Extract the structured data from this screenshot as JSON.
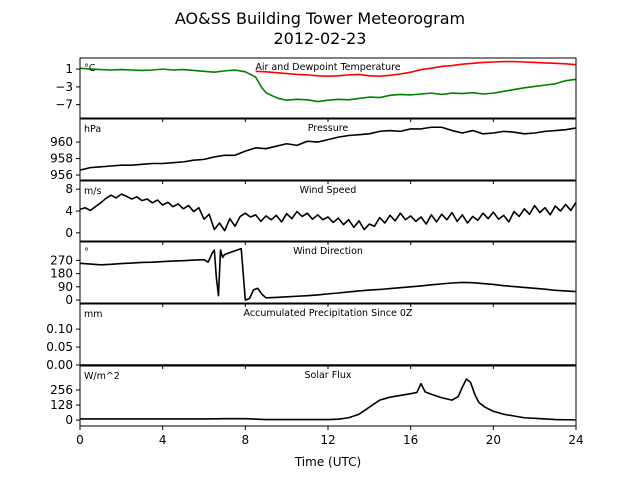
{
  "figure": {
    "title_line1": "AO&SS Building Tower Meteorogram",
    "title_line2": "2012-02-23",
    "xlabel": "Time (UTC)"
  },
  "chart_data": {
    "type": "line",
    "xlim": [
      0,
      24
    ],
    "xticks": [
      0,
      4,
      8,
      12,
      16,
      20,
      24
    ],
    "panels": [
      {
        "key": "temp",
        "title": "Air and Dewpoint Temperature",
        "unit": "°C",
        "ylim": [
          -10,
          3.5
        ],
        "yticks": [
          1,
          -3,
          -7
        ],
        "series": [
          {
            "name": "Air temperature",
            "color": "#ff0000",
            "x": [
              8.5,
              9,
              9.5,
              10,
              10.5,
              11,
              11.5,
              12,
              12.5,
              13,
              13.5,
              14,
              14.5,
              15,
              15.5,
              16,
              16.5,
              17,
              17.5,
              18,
              18.5,
              19,
              19.5,
              20,
              20.5,
              21,
              21.5,
              22,
              22.5,
              23,
              23.5,
              24
            ],
            "y": [
              0.5,
              0.4,
              0.2,
              0.0,
              -0.2,
              -0.3,
              -0.5,
              -0.6,
              -0.5,
              -0.3,
              -0.2,
              -0.5,
              -0.6,
              -0.4,
              -0.1,
              0.3,
              0.9,
              1.2,
              1.6,
              1.8,
              2.1,
              2.3,
              2.5,
              2.6,
              2.7,
              2.7,
              2.6,
              2.5,
              2.4,
              2.3,
              2.2,
              2.0
            ]
          },
          {
            "name": "Dewpoint",
            "color": "#008000",
            "x": [
              0,
              0.5,
              1,
              1.5,
              2,
              2.5,
              3,
              3.5,
              4,
              4.5,
              5,
              5.5,
              6,
              6.5,
              7,
              7.5,
              8,
              8.5,
              8.8,
              9,
              9.3,
              9.6,
              10,
              10.5,
              11,
              11.5,
              12,
              12.5,
              13,
              13.5,
              14,
              14.5,
              15,
              15.5,
              16,
              16.5,
              17,
              17.5,
              18,
              18.5,
              19,
              19.5,
              20,
              20.5,
              21,
              21.5,
              22,
              22.5,
              23,
              23.5,
              24
            ],
            "y": [
              1.2,
              1.0,
              0.9,
              0.8,
              0.9,
              0.8,
              0.7,
              0.8,
              1.0,
              0.8,
              0.9,
              0.7,
              0.5,
              0.3,
              0.6,
              0.8,
              0.4,
              -0.8,
              -3.2,
              -4.3,
              -5.0,
              -5.6,
              -6.0,
              -5.8,
              -5.9,
              -6.3,
              -6.0,
              -5.8,
              -5.9,
              -5.6,
              -5.3,
              -5.4,
              -4.9,
              -4.7,
              -4.8,
              -4.6,
              -4.4,
              -4.7,
              -4.4,
              -4.5,
              -4.3,
              -4.6,
              -4.4,
              -4.0,
              -3.6,
              -3.2,
              -2.9,
              -2.6,
              -2.3,
              -1.6,
              -1.3
            ]
          }
        ]
      },
      {
        "key": "pres",
        "title": "Pressure",
        "unit": "hPa",
        "ylim": [
          955.4,
          962.8
        ],
        "yticks": [
          960,
          958,
          956
        ],
        "series": [
          {
            "name": "Pressure",
            "color": "#000000",
            "x": [
              0,
              0.5,
              1,
              1.5,
              2,
              2.5,
              3,
              3.5,
              4,
              4.5,
              5,
              5.5,
              6,
              6.5,
              7,
              7.5,
              8,
              8.5,
              9,
              9.5,
              10,
              10.5,
              11,
              11.5,
              12,
              12.5,
              13,
              13.5,
              14,
              14.5,
              15,
              15.5,
              16,
              16.5,
              17,
              17.5,
              18,
              18.5,
              19,
              19.5,
              20,
              20.5,
              21,
              21.5,
              22,
              22.5,
              23,
              23.5,
              24
            ],
            "y": [
              956.6,
              956.9,
              957.0,
              957.1,
              957.2,
              957.2,
              957.3,
              957.4,
              957.4,
              957.5,
              957.6,
              957.8,
              957.9,
              958.2,
              958.4,
              958.4,
              958.9,
              959.3,
              959.2,
              959.5,
              959.8,
              959.6,
              960.1,
              960.0,
              960.3,
              960.6,
              960.8,
              960.9,
              961.0,
              961.3,
              961.4,
              961.3,
              961.6,
              961.6,
              961.8,
              961.8,
              961.4,
              961.1,
              961.4,
              961.0,
              961.1,
              961.3,
              961.2,
              961.0,
              961.1,
              961.3,
              961.4,
              961.5,
              961.7
            ]
          }
        ]
      },
      {
        "key": "wspd",
        "title": "Wind Speed",
        "unit": "m/s",
        "ylim": [
          -1.5,
          9.5
        ],
        "yticks": [
          8,
          4,
          0
        ],
        "series": [
          {
            "name": "Wind speed",
            "color": "#000000",
            "x": [
              0,
              0.25,
              0.5,
              0.75,
              1,
              1.25,
              1.5,
              1.75,
              2,
              2.25,
              2.5,
              2.75,
              3,
              3.25,
              3.5,
              3.75,
              4,
              4.25,
              4.5,
              4.75,
              5,
              5.25,
              5.5,
              5.75,
              6,
              6.25,
              6.5,
              6.75,
              7,
              7.25,
              7.5,
              7.75,
              8,
              8.25,
              8.5,
              8.75,
              9,
              9.25,
              9.5,
              9.75,
              10,
              10.25,
              10.5,
              10.75,
              11,
              11.25,
              11.5,
              11.75,
              12,
              12.25,
              12.5,
              12.75,
              13,
              13.25,
              13.5,
              13.75,
              14,
              14.25,
              14.5,
              14.75,
              15,
              15.25,
              15.5,
              15.75,
              16,
              16.25,
              16.5,
              16.75,
              17,
              17.25,
              17.5,
              17.75,
              18,
              18.25,
              18.5,
              18.75,
              19,
              19.25,
              19.5,
              19.75,
              20,
              20.25,
              20.5,
              20.75,
              21,
              21.25,
              21.5,
              21.75,
              22,
              22.25,
              22.5,
              22.75,
              23,
              23.25,
              23.5,
              23.75,
              24
            ],
            "y": [
              4.3,
              4.6,
              4.1,
              4.8,
              5.5,
              6.3,
              6.9,
              6.4,
              7.1,
              6.7,
              6.2,
              6.6,
              5.9,
              6.2,
              5.5,
              6.0,
              5.1,
              5.6,
              4.8,
              5.3,
              4.4,
              5.0,
              3.9,
              4.6,
              2.5,
              3.4,
              0.6,
              1.8,
              0.4,
              2.6,
              1.2,
              3.0,
              3.6,
              2.9,
              3.3,
              2.1,
              3.1,
              2.4,
              3.2,
              2.0,
              3.5,
              2.6,
              3.9,
              3.0,
              3.6,
              2.5,
              3.3,
              2.4,
              2.9,
              1.9,
              2.7,
              1.5,
              2.4,
              1.0,
              2.2,
              0.6,
              1.6,
              1.2,
              2.8,
              1.8,
              3.2,
              2.2,
              3.6,
              2.4,
              3.1,
              2.1,
              2.9,
              1.6,
              3.3,
              2.0,
              3.4,
              2.4,
              3.7,
              2.1,
              3.3,
              1.8,
              3.0,
              2.3,
              3.6,
              2.6,
              3.8,
              2.5,
              3.2,
              2.0,
              3.9,
              3.0,
              4.4,
              3.4,
              5.0,
              3.7,
              4.6,
              3.3,
              4.9,
              4.0,
              5.2,
              4.1,
              5.6
            ]
          }
        ]
      },
      {
        "key": "wdir",
        "title": "Wind Direction",
        "unit": "°",
        "ylim": [
          -20,
          395
        ],
        "yticks": [
          270,
          180,
          90,
          0
        ],
        "series": [
          {
            "name": "Wind direction",
            "color": "#000000",
            "x": [
              0,
              0.5,
              1,
              1.5,
              2,
              2.5,
              3,
              3.5,
              4,
              4.5,
              5,
              5.5,
              6,
              6.2,
              6.4,
              6.5,
              6.6,
              6.7,
              6.8,
              6.9,
              7.0,
              7.2,
              7.4,
              7.6,
              7.8,
              8.0,
              8.2,
              8.4,
              8.6,
              8.8,
              9,
              9.5,
              10,
              10.5,
              11,
              11.5,
              12,
              12.5,
              13,
              13.5,
              14,
              14.5,
              15,
              15.5,
              16,
              16.5,
              17,
              17.5,
              18,
              18.5,
              19,
              19.5,
              20,
              20.5,
              21,
              21.5,
              22,
              22.5,
              23,
              23.5,
              24
            ],
            "y": [
              250,
              245,
              240,
              243,
              248,
              252,
              256,
              258,
              262,
              265,
              268,
              272,
              275,
              258,
              320,
              340,
              150,
              30,
              340,
              290,
              310,
              320,
              330,
              340,
              350,
              0,
              10,
              70,
              80,
              40,
              15,
              18,
              22,
              26,
              30,
              35,
              42,
              48,
              55,
              62,
              68,
              72,
              78,
              84,
              90,
              96,
              104,
              110,
              116,
              120,
              118,
              112,
              106,
              98,
              92,
              86,
              80,
              74,
              66,
              62,
              58
            ]
          }
        ]
      },
      {
        "key": "precip",
        "title": "Accumulated Precipitation Since 0Z",
        "unit": "mm",
        "ylim": [
          0,
          0.17
        ],
        "yticks": [
          0.1,
          0.05,
          0.0
        ],
        "ytick_labels": [
          "0.10",
          "0.05",
          "0.00"
        ],
        "series": [
          {
            "name": "Accumulated precipitation",
            "color": "#000000",
            "x": [
              0,
              24
            ],
            "y": [
              0.0,
              0.0
            ]
          }
        ]
      },
      {
        "key": "solar",
        "title": "Solar Flux",
        "unit": "W/m^2",
        "ylim": [
          -50,
          460
        ],
        "yticks": [
          256,
          128,
          0
        ],
        "series": [
          {
            "name": "Solar flux",
            "color": "#000000",
            "x": [
              0,
              1,
              2,
              3,
              4,
              5,
              6,
              7,
              8,
              9,
              10,
              11,
              12,
              12.5,
              13,
              13.5,
              14,
              14.5,
              15,
              15.5,
              16,
              16.3,
              16.5,
              16.7,
              17,
              17.5,
              18,
              18.3,
              18.5,
              18.7,
              18.9,
              19.1,
              19.3,
              19.6,
              20,
              20.5,
              21,
              21.5,
              22,
              22.5,
              23,
              23.5,
              24
            ],
            "y": [
              10,
              10,
              10,
              10,
              10,
              10,
              10,
              12,
              12,
              5,
              5,
              5,
              5,
              8,
              20,
              50,
              110,
              170,
              195,
              210,
              225,
              235,
              310,
              240,
              220,
              190,
              170,
              200,
              280,
              350,
              320,
              220,
              150,
              110,
              75,
              50,
              35,
              20,
              15,
              10,
              5,
              3,
              2
            ]
          }
        ]
      }
    ]
  }
}
